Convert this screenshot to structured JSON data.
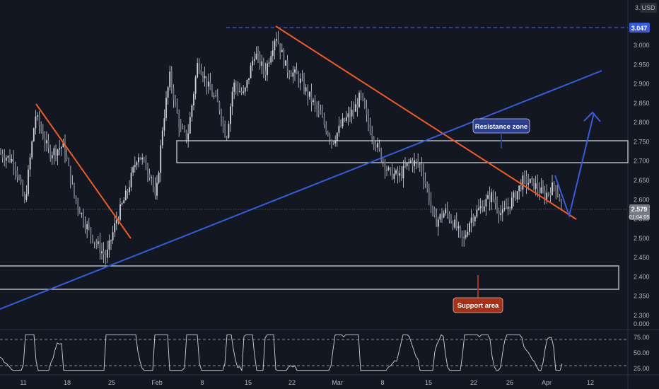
{
  "chart_data": {
    "type": "candlestick",
    "currency": "USD",
    "top_label": "3.",
    "price_axis": {
      "ylim": [
        2.3,
        3.07
      ],
      "ticks": [
        "3.000",
        "2.950",
        "2.900",
        "2.850",
        "2.800",
        "2.750",
        "2.700",
        "2.650",
        "2.600",
        "2.550",
        "2.500",
        "2.450",
        "2.400",
        "2.350",
        "2.300"
      ]
    },
    "x_labels": [
      "11",
      "18",
      "25",
      "Feb",
      "8",
      "15",
      "22",
      "Mar",
      "8",
      "15",
      "22",
      "26",
      "Apr",
      "12"
    ],
    "current_price": {
      "value": "2.579",
      "countdown": "01:04:05"
    },
    "marked_high": {
      "value": "3.047"
    },
    "annotations": {
      "resistance": "Resistance zone",
      "support": "Support area"
    },
    "zones": [
      {
        "name": "resistance-zone",
        "from": 2.697,
        "to": 2.752
      },
      {
        "name": "support-zone",
        "from": 2.368,
        "to": 2.428
      }
    ],
    "rsi": {
      "ticks": [
        "75.00",
        "50.00",
        "25.00"
      ],
      "zero_label": "0.000",
      "upper": 70,
      "lower": 30
    },
    "colors": {
      "background": "#131722",
      "candles": "#d1d4dc",
      "trend_red": "#f05a28",
      "trend_blue": "#3a5bd9",
      "resistance_badge": "#2c3e8c",
      "support_badge": "#a4311a",
      "price_badge": "#787b86"
    }
  }
}
